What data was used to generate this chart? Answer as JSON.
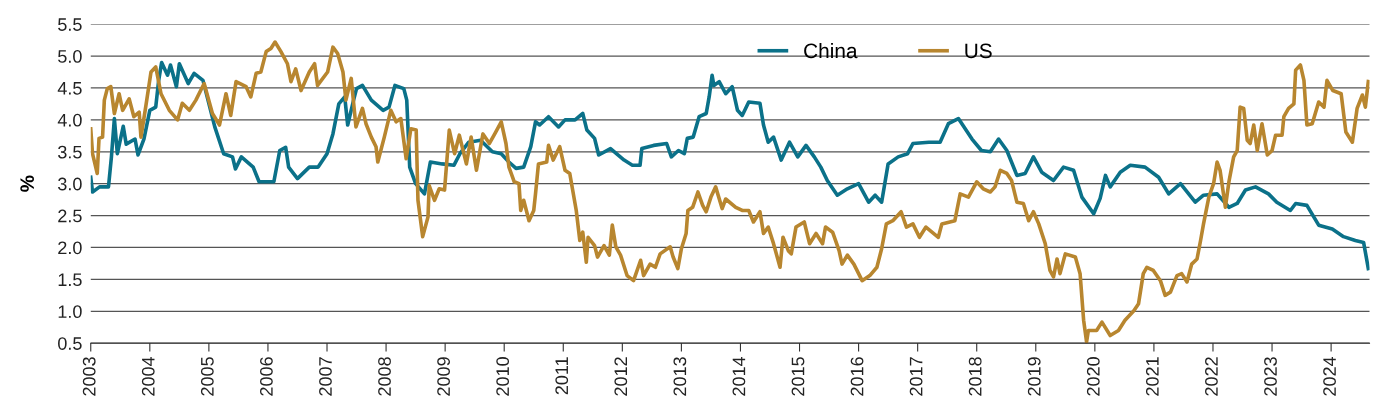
{
  "chart_data": {
    "type": "line",
    "ylabel": "%",
    "xlim": [
      2003,
      2024.65
    ],
    "xticks": [
      2003,
      2004,
      2005,
      2006,
      2007,
      2008,
      2009,
      2010,
      2011,
      2012,
      2013,
      2014,
      2015,
      2016,
      2017,
      2018,
      2019,
      2020,
      2021,
      2022,
      2023,
      2024
    ],
    "ylim": [
      0.5,
      5.5
    ],
    "yticks": [
      {
        "value": 0.5,
        "label": "0.5"
      },
      {
        "value": 1,
        "label": "1.0"
      },
      {
        "value": 1.5,
        "label": "1.5"
      },
      {
        "value": 2,
        "label": "2.0"
      },
      {
        "value": 2.5,
        "label": "2.5"
      },
      {
        "value": 3,
        "label": "3.0"
      },
      {
        "value": 3.5,
        "label": "3.5"
      },
      {
        "value": 4,
        "label": "4.0"
      },
      {
        "value": 4.5,
        "label": "4.5"
      },
      {
        "value": 5,
        "label": "5.0"
      },
      {
        "value": 5.5,
        "label": "5.5"
      }
    ],
    "grid": "y",
    "legend": "top right",
    "line_style": "solid",
    "marker": "none",
    "series": [
      {
        "name": "China",
        "color": "#0b7189",
        "x": [
          2003.0,
          2003.03,
          2003.15,
          2003.3,
          2003.35,
          2003.4,
          2003.45,
          2003.55,
          2003.6,
          2003.75,
          2003.8,
          2003.9,
          2004.0,
          2004.1,
          2004.15,
          2004.2,
          2004.3,
          2004.35,
          2004.45,
          2004.5,
          2004.65,
          2004.75,
          2004.9,
          2005.1,
          2005.25,
          2005.4,
          2005.45,
          2005.55,
          2005.75,
          2005.85,
          2006.1,
          2006.2,
          2006.3,
          2006.35,
          2006.5,
          2006.7,
          2006.85,
          2007.0,
          2007.1,
          2007.2,
          2007.3,
          2007.35,
          2007.45,
          2007.5,
          2007.6,
          2007.75,
          2007.95,
          2008.05,
          2008.15,
          2008.3,
          2008.35,
          2008.4,
          2008.5,
          2008.65,
          2008.75,
          2008.95,
          2009.15,
          2009.25,
          2009.4,
          2009.6,
          2009.8,
          2009.95,
          2010.08,
          2010.2,
          2010.33,
          2010.45,
          2010.53,
          2010.6,
          2010.75,
          2010.92,
          2011.03,
          2011.2,
          2011.33,
          2011.4,
          2011.53,
          2011.6,
          2011.8,
          2012.03,
          2012.17,
          2012.3,
          2012.33,
          2012.53,
          2012.75,
          2012.83,
          2012.95,
          2013.05,
          2013.1,
          2013.2,
          2013.3,
          2013.42,
          2013.47,
          2013.52,
          2013.55,
          2013.64,
          2013.75,
          2013.86,
          2013.95,
          2014.03,
          2014.14,
          2014.33,
          2014.39,
          2014.47,
          2014.56,
          2014.69,
          2014.83,
          2014.97,
          2015.11,
          2015.25,
          2015.36,
          2015.47,
          2015.64,
          2015.81,
          2016.0,
          2016.17,
          2016.28,
          2016.39,
          2016.5,
          2016.67,
          2016.83,
          2016.92,
          2017.19,
          2017.38,
          2017.52,
          2017.69,
          2017.92,
          2018.08,
          2018.23,
          2018.37,
          2018.51,
          2018.68,
          2018.82,
          2018.96,
          2019.1,
          2019.3,
          2019.47,
          2019.64,
          2019.78,
          2019.98,
          2020.09,
          2020.18,
          2020.26,
          2020.43,
          2020.6,
          2020.85,
          2021.08,
          2021.25,
          2021.45,
          2021.7,
          2021.84,
          2022.07,
          2022.27,
          2022.41,
          2022.55,
          2022.72,
          2022.94,
          2023.08,
          2023.31,
          2023.4,
          2023.59,
          2023.79,
          2024.02,
          2024.21,
          2024.41,
          2024.55,
          2024.63
        ],
        "values": [
          3.1,
          2.87,
          2.95,
          2.95,
          3.42,
          4.02,
          3.47,
          3.9,
          3.62,
          3.7,
          3.45,
          3.7,
          4.15,
          4.2,
          4.62,
          4.9,
          4.7,
          4.86,
          4.52,
          4.88,
          4.57,
          4.73,
          4.62,
          3.89,
          3.47,
          3.42,
          3.23,
          3.42,
          3.26,
          3.03,
          3.03,
          3.52,
          3.57,
          3.26,
          3.08,
          3.26,
          3.26,
          3.47,
          3.78,
          4.25,
          4.36,
          3.92,
          4.31,
          4.49,
          4.54,
          4.31,
          4.15,
          4.2,
          4.54,
          4.49,
          4.31,
          3.26,
          3.0,
          2.84,
          3.34,
          3.31,
          3.29,
          3.47,
          3.65,
          3.68,
          3.5,
          3.47,
          3.34,
          3.24,
          3.26,
          3.58,
          3.97,
          3.92,
          4.05,
          3.89,
          4.0,
          4.0,
          4.1,
          3.84,
          3.71,
          3.45,
          3.55,
          3.37,
          3.29,
          3.29,
          3.55,
          3.6,
          3.63,
          3.42,
          3.52,
          3.47,
          3.71,
          3.73,
          4.05,
          4.1,
          4.36,
          4.7,
          4.54,
          4.6,
          4.41,
          4.52,
          4.15,
          4.07,
          4.28,
          4.26,
          3.92,
          3.65,
          3.73,
          3.37,
          3.65,
          3.42,
          3.6,
          3.42,
          3.26,
          3.05,
          2.82,
          2.92,
          3.0,
          2.71,
          2.82,
          2.71,
          3.31,
          3.42,
          3.47,
          3.63,
          3.65,
          3.65,
          3.94,
          4.02,
          3.7,
          3.52,
          3.5,
          3.7,
          3.52,
          3.13,
          3.16,
          3.42,
          3.18,
          3.05,
          3.26,
          3.21,
          2.79,
          2.53,
          2.77,
          3.13,
          2.95,
          3.18,
          3.29,
          3.26,
          3.1,
          2.84,
          3.0,
          2.71,
          2.82,
          2.84,
          2.63,
          2.69,
          2.9,
          2.95,
          2.84,
          2.71,
          2.58,
          2.69,
          2.66,
          2.35,
          2.29,
          2.17,
          2.11,
          2.08,
          1.67
        ]
      },
      {
        "name": "US",
        "color": "#b8862f",
        "x": [
          2003.0,
          2003.03,
          2003.11,
          2003.14,
          2003.2,
          2003.23,
          2003.28,
          2003.34,
          2003.4,
          2003.48,
          2003.54,
          2003.65,
          2003.73,
          2003.82,
          2003.85,
          2003.93,
          2004.02,
          2004.1,
          2004.19,
          2004.33,
          2004.47,
          2004.55,
          2004.67,
          2004.78,
          2004.92,
          2005.06,
          2005.18,
          2005.29,
          2005.37,
          2005.46,
          2005.63,
          2005.71,
          2005.8,
          2005.88,
          2005.97,
          2006.05,
          2006.12,
          2006.22,
          2006.33,
          2006.39,
          2006.47,
          2006.56,
          2006.7,
          2006.79,
          2006.84,
          2007.01,
          2007.1,
          2007.18,
          2007.27,
          2007.32,
          2007.41,
          2007.49,
          2007.6,
          2007.66,
          2007.75,
          2007.83,
          2007.86,
          2007.97,
          2008.08,
          2008.17,
          2008.25,
          2008.34,
          2008.42,
          2008.51,
          2008.54,
          2008.62,
          2008.71,
          2008.73,
          2008.82,
          2008.9,
          2008.99,
          2009.07,
          2009.16,
          2009.24,
          2009.36,
          2009.44,
          2009.53,
          2009.64,
          2009.75,
          2009.84,
          2009.95,
          2010.03,
          2010.08,
          2010.17,
          2010.25,
          2010.28,
          2010.33,
          2010.42,
          2010.5,
          2010.53,
          2010.58,
          2010.72,
          2010.75,
          2010.83,
          2010.94,
          2011.03,
          2011.11,
          2011.22,
          2011.28,
          2011.33,
          2011.39,
          2011.42,
          2011.53,
          2011.58,
          2011.69,
          2011.78,
          2011.83,
          2011.89,
          2011.97,
          2012.08,
          2012.19,
          2012.31,
          2012.36,
          2012.47,
          2012.56,
          2012.64,
          2012.81,
          2012.86,
          2012.94,
          2013.0,
          2013.08,
          2013.11,
          2013.19,
          2013.28,
          2013.36,
          2013.42,
          2013.5,
          2013.58,
          2013.69,
          2013.75,
          2013.92,
          2014.03,
          2014.14,
          2014.22,
          2014.33,
          2014.39,
          2014.47,
          2014.56,
          2014.67,
          2014.72,
          2014.81,
          2014.86,
          2014.94,
          2015.08,
          2015.17,
          2015.28,
          2015.39,
          2015.44,
          2015.56,
          2015.67,
          2015.72,
          2015.81,
          2015.92,
          2016.06,
          2016.19,
          2016.31,
          2016.39,
          2016.47,
          2016.58,
          2016.72,
          2016.81,
          2016.92,
          2017.03,
          2017.14,
          2017.35,
          2017.41,
          2017.63,
          2017.72,
          2017.86,
          2018.0,
          2018.11,
          2018.23,
          2018.31,
          2018.4,
          2018.51,
          2018.59,
          2018.68,
          2018.79,
          2018.88,
          2018.96,
          2019.05,
          2019.16,
          2019.24,
          2019.3,
          2019.36,
          2019.41,
          2019.5,
          2019.67,
          2019.75,
          2019.81,
          2019.86,
          2019.89,
          2020.03,
          2020.12,
          2020.26,
          2020.4,
          2020.51,
          2020.66,
          2020.74,
          2020.82,
          2020.88,
          2020.99,
          2021.11,
          2021.19,
          2021.28,
          2021.39,
          2021.47,
          2021.56,
          2021.64,
          2021.73,
          2021.79,
          2021.84,
          2021.93,
          2022.01,
          2022.07,
          2022.12,
          2022.21,
          2022.27,
          2022.35,
          2022.41,
          2022.46,
          2022.52,
          2022.58,
          2022.63,
          2022.69,
          2022.75,
          2022.83,
          2022.92,
          2023.0,
          2023.06,
          2023.17,
          2023.2,
          2023.28,
          2023.37,
          2023.4,
          2023.48,
          2023.54,
          2023.59,
          2023.68,
          2023.79,
          2023.88,
          2023.93,
          2024.03,
          2024.17,
          2024.25,
          2024.36,
          2024.44,
          2024.53,
          2024.58,
          2024.63
        ],
        "values": [
          3.86,
          3.47,
          3.16,
          3.71,
          3.73,
          4.31,
          4.49,
          4.52,
          4.1,
          4.41,
          4.15,
          4.33,
          4.05,
          4.12,
          3.73,
          4.2,
          4.75,
          4.83,
          4.41,
          4.15,
          4.0,
          4.26,
          4.15,
          4.31,
          4.57,
          4.1,
          3.92,
          4.41,
          4.07,
          4.6,
          4.52,
          4.36,
          4.73,
          4.75,
          5.07,
          5.12,
          5.22,
          5.07,
          4.88,
          4.6,
          4.8,
          4.46,
          4.75,
          4.88,
          4.54,
          4.75,
          5.14,
          5.04,
          4.75,
          4.31,
          4.65,
          3.89,
          4.18,
          3.94,
          3.73,
          3.58,
          3.34,
          3.73,
          4.15,
          3.97,
          4.02,
          3.39,
          3.86,
          3.84,
          2.74,
          2.17,
          2.48,
          2.97,
          2.74,
          2.92,
          2.9,
          3.84,
          3.47,
          3.76,
          3.31,
          3.73,
          3.21,
          3.78,
          3.63,
          3.78,
          3.97,
          3.63,
          3.26,
          3.03,
          3.0,
          2.58,
          2.74,
          2.42,
          2.58,
          2.84,
          3.31,
          3.34,
          3.6,
          3.37,
          3.58,
          3.21,
          3.16,
          2.58,
          2.11,
          2.24,
          1.77,
          2.16,
          2.03,
          1.85,
          2.03,
          1.88,
          2.35,
          2.01,
          1.88,
          1.56,
          1.48,
          1.8,
          1.56,
          1.74,
          1.69,
          1.9,
          2.01,
          1.85,
          1.67,
          1.98,
          2.22,
          2.58,
          2.63,
          2.87,
          2.66,
          2.56,
          2.79,
          2.95,
          2.61,
          2.76,
          2.63,
          2.58,
          2.58,
          2.4,
          2.56,
          2.22,
          2.32,
          2.06,
          1.69,
          2.16,
          1.95,
          1.9,
          2.32,
          2.4,
          2.06,
          2.22,
          2.06,
          2.32,
          2.24,
          1.95,
          1.74,
          1.88,
          1.74,
          1.48,
          1.56,
          1.69,
          1.98,
          2.37,
          2.42,
          2.56,
          2.32,
          2.37,
          2.16,
          2.32,
          2.16,
          2.37,
          2.42,
          2.84,
          2.79,
          3.03,
          2.92,
          2.87,
          2.95,
          3.21,
          3.16,
          3.05,
          2.71,
          2.69,
          2.42,
          2.56,
          2.37,
          2.06,
          1.64,
          1.54,
          1.82,
          1.59,
          1.9,
          1.85,
          1.59,
          0.86,
          0.52,
          0.7,
          0.7,
          0.83,
          0.62,
          0.7,
          0.86,
          1.01,
          1.12,
          1.59,
          1.69,
          1.64,
          1.48,
          1.25,
          1.3,
          1.56,
          1.59,
          1.46,
          1.74,
          1.82,
          2.11,
          2.37,
          2.79,
          3.0,
          3.34,
          3.21,
          2.63,
          3.03,
          3.42,
          3.52,
          4.2,
          4.18,
          3.68,
          3.63,
          3.92,
          3.52,
          3.94,
          3.45,
          3.52,
          3.76,
          3.76,
          4.05,
          4.18,
          4.25,
          4.78,
          4.86,
          4.62,
          3.92,
          3.94,
          4.28,
          4.2,
          4.62,
          4.46,
          4.41,
          3.81,
          3.65,
          4.18,
          4.39,
          4.2,
          4.6
        ]
      }
    ]
  }
}
